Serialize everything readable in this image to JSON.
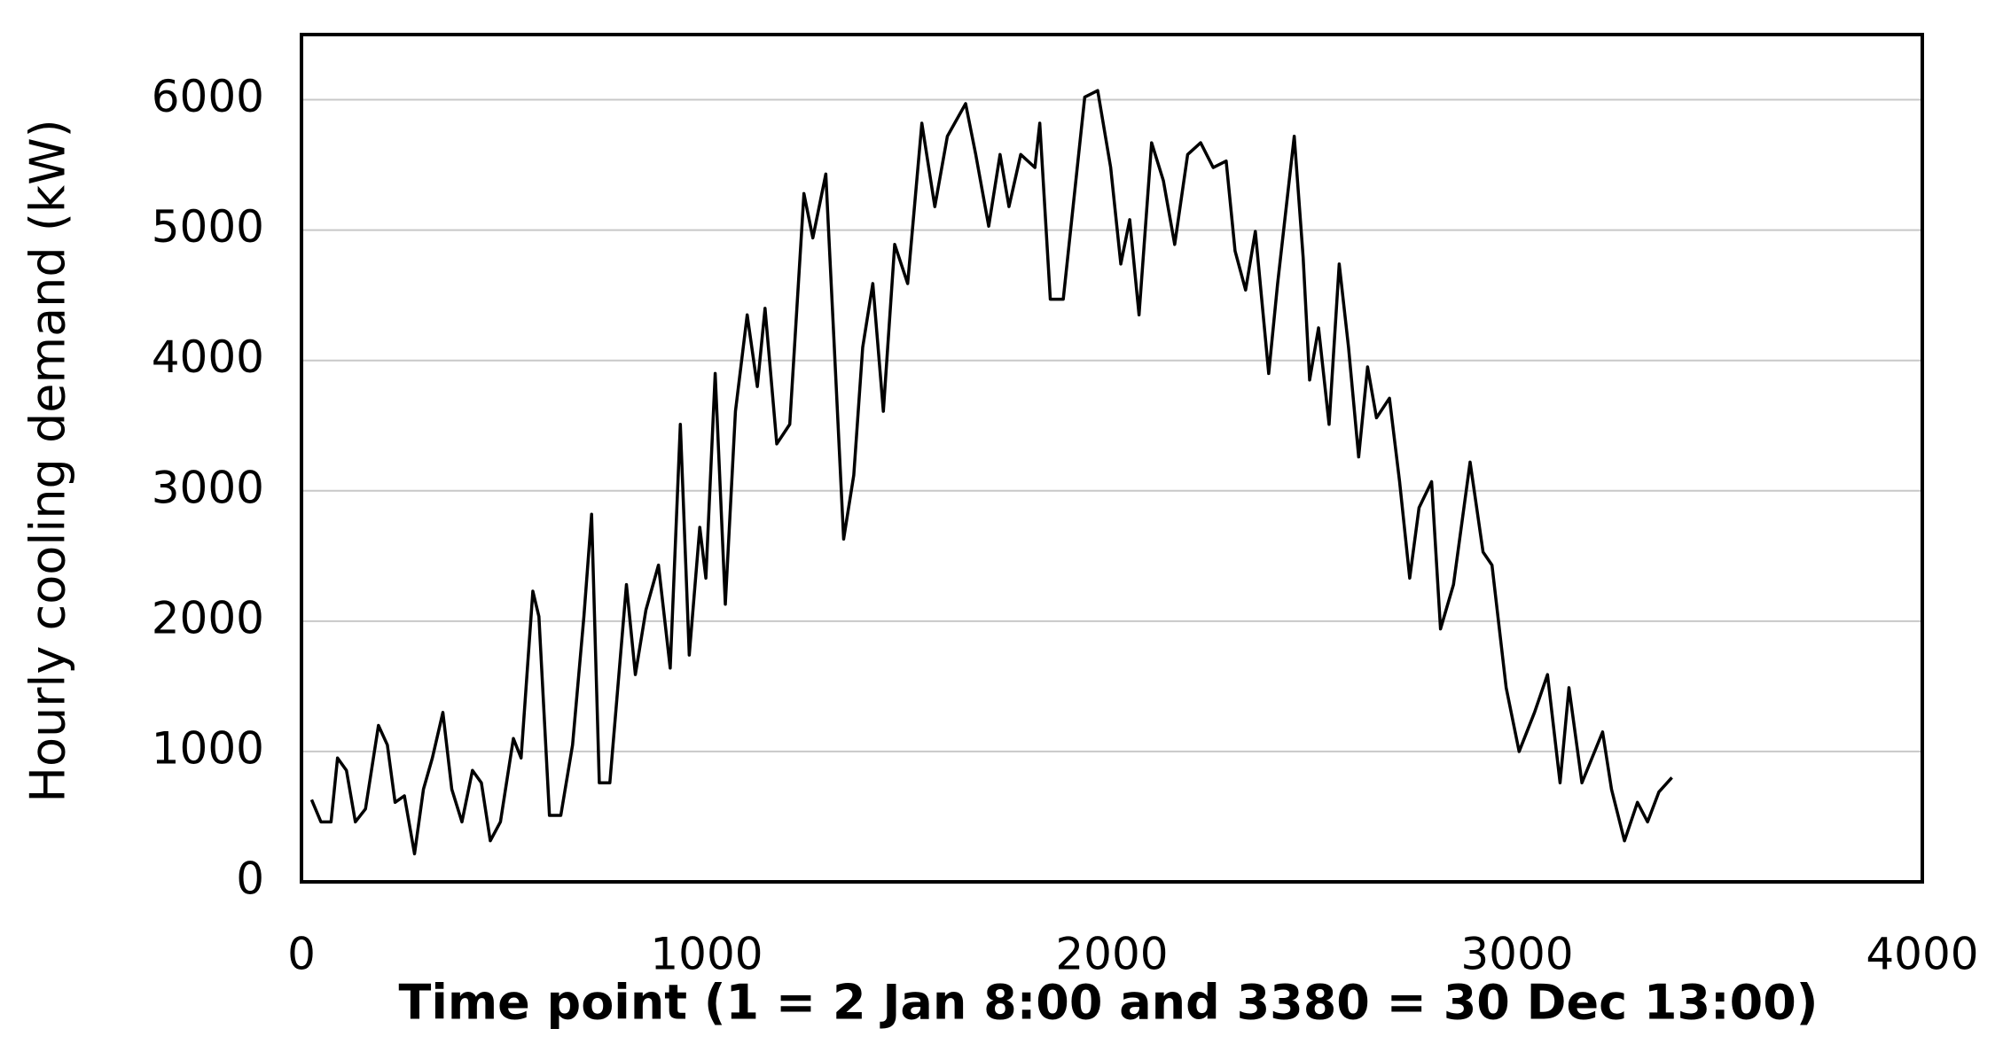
{
  "chart_data": {
    "type": "line",
    "x_label": "Time point (1 = 2 Jan 8:00 and 3380 = 30 Dec 13:00)",
    "y_label": "Hourly cooling demand (kW)",
    "xlim": [
      0,
      4000
    ],
    "xticks": [
      0,
      1000,
      2000,
      3000,
      4000
    ],
    "ylim": [
      0,
      6500
    ],
    "yticks": [
      0,
      1000,
      2000,
      3000,
      4000,
      5000,
      6000
    ],
    "grid": true,
    "series": [
      {
        "color": "#000000",
        "x": [
          25,
          48,
          73,
          89,
          111,
          133,
          158,
          190,
          212,
          231,
          254,
          279,
          301,
          323,
          349,
          371,
          396,
          422,
          444,
          466,
          491,
          523,
          542,
          571,
          586,
          612,
          640,
          669,
          697,
          716,
          735,
          761,
          802,
          824,
          850,
          881,
          910,
          935,
          957,
          983,
          998,
          1021,
          1046,
          1071,
          1100,
          1125,
          1144,
          1173,
          1205,
          1240,
          1262,
          1294,
          1315,
          1338,
          1363,
          1385,
          1410,
          1436,
          1464,
          1496,
          1531,
          1563,
          1594,
          1639,
          1664,
          1696,
          1724,
          1746,
          1775,
          1810,
          1822,
          1848,
          1880,
          1933,
          1965,
          1997,
          2022,
          2044,
          2067,
          2098,
          2127,
          2155,
          2187,
          2219,
          2250,
          2282,
          2304,
          2330,
          2354,
          2387,
          2409,
          2450,
          2472,
          2488,
          2510,
          2536,
          2561,
          2584,
          2609,
          2631,
          2653,
          2685,
          2710,
          2735,
          2758,
          2789,
          2811,
          2843,
          2884,
          2916,
          2938,
          2973,
          3005,
          3043,
          3075,
          3106,
          3128,
          3160,
          3211,
          3233,
          3265,
          3297,
          3322,
          3350,
          3382
        ],
        "values": [
          630,
          460,
          460,
          950,
          855,
          460,
          560,
          1200,
          1050,
          610,
          660,
          215,
          710,
          950,
          1300,
          710,
          460,
          855,
          760,
          315,
          460,
          1100,
          950,
          2230,
          2035,
          510,
          510,
          1050,
          2035,
          2820,
          760,
          760,
          2280,
          1590,
          2085,
          2430,
          1640,
          3510,
          1740,
          2720,
          2330,
          3900,
          2130,
          3610,
          4350,
          3800,
          4400,
          3360,
          3510,
          5280,
          4940,
          5430,
          4100,
          2630,
          3120,
          4100,
          4590,
          3610,
          4890,
          4590,
          5820,
          5180,
          5720,
          5970,
          5580,
          5030,
          5580,
          5180,
          5580,
          5480,
          5820,
          4470,
          4470,
          6020,
          6070,
          5480,
          4740,
          5080,
          4350,
          5670,
          5380,
          4890,
          5580,
          5670,
          5480,
          5530,
          4840,
          4540,
          4990,
          3900,
          4590,
          5720,
          4790,
          3850,
          4250,
          3510,
          4740,
          4100,
          3260,
          3950,
          3560,
          3710,
          3070,
          2330,
          2870,
          3070,
          1940,
          2280,
          3220,
          2530,
          2430,
          1490,
          1000,
          1300,
          1590,
          760,
          1490,
          760,
          1150,
          710,
          315,
          610,
          460,
          690,
          800
        ]
      }
    ]
  }
}
